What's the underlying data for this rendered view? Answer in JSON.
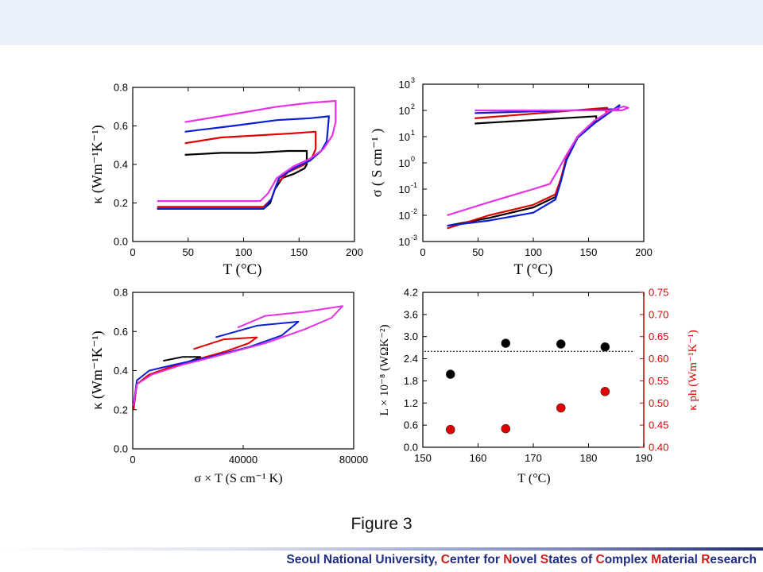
{
  "caption": "Figure 3",
  "footer": {
    "parts": [
      {
        "text": "Seoul National University, ",
        "red": false
      },
      {
        "text": "C",
        "red": true
      },
      {
        "text": "enter for ",
        "red": false
      },
      {
        "text": "N",
        "red": true
      },
      {
        "text": "ovel ",
        "red": false
      },
      {
        "text": "S",
        "red": true
      },
      {
        "text": "tates of ",
        "red": false
      },
      {
        "text": "C",
        "red": true
      },
      {
        "text": "omplex ",
        "red": false
      },
      {
        "text": "M",
        "red": true
      },
      {
        "text": "aterial ",
        "red": false
      },
      {
        "text": "R",
        "red": true
      },
      {
        "text": "esearch",
        "red": false
      }
    ]
  },
  "colors": {
    "black": "#000000",
    "red": "#e00000",
    "blue": "#0a1fd6",
    "magenta": "#e632e6",
    "axis": "#000000",
    "right_axis": "#e00000"
  },
  "chart_data": [
    {
      "type": "line",
      "xlabel": "T (°C)",
      "ylabel": "κ (Wm⁻¹K⁻¹)",
      "xlim": [
        0,
        200
      ],
      "ylim": [
        0,
        0.8
      ],
      "xticks": [
        "0",
        "50",
        "100",
        "150",
        "200"
      ],
      "yticks": [
        "0.0",
        "0.2",
        "0.4",
        "0.6",
        "0.8"
      ],
      "series": [
        {
          "color": "black",
          "x": [
            22,
            60,
            100,
            118,
            124,
            128,
            135,
            145,
            155,
            157,
            157,
            140,
            110,
            80,
            47
          ],
          "y": [
            0.17,
            0.17,
            0.17,
            0.17,
            0.2,
            0.27,
            0.33,
            0.35,
            0.38,
            0.4,
            0.47,
            0.47,
            0.46,
            0.46,
            0.45
          ]
        },
        {
          "color": "red",
          "x": [
            22,
            60,
            100,
            118,
            125,
            130,
            140,
            155,
            162,
            165,
            165,
            140,
            110,
            80,
            47
          ],
          "y": [
            0.18,
            0.18,
            0.18,
            0.18,
            0.22,
            0.3,
            0.36,
            0.4,
            0.44,
            0.48,
            0.57,
            0.56,
            0.55,
            0.54,
            0.51
          ]
        },
        {
          "color": "blue",
          "x": [
            22,
            60,
            100,
            118,
            125,
            132,
            145,
            160,
            170,
            175,
            177,
            160,
            130,
            90,
            47
          ],
          "y": [
            0.17,
            0.17,
            0.17,
            0.17,
            0.22,
            0.33,
            0.38,
            0.42,
            0.47,
            0.52,
            0.65,
            0.64,
            0.63,
            0.6,
            0.57
          ]
        },
        {
          "color": "magenta",
          "x": [
            22,
            60,
            100,
            115,
            122,
            130,
            145,
            160,
            172,
            180,
            183,
            183,
            160,
            130,
            100,
            47
          ],
          "y": [
            0.21,
            0.21,
            0.21,
            0.21,
            0.25,
            0.33,
            0.39,
            0.43,
            0.48,
            0.55,
            0.62,
            0.73,
            0.72,
            0.7,
            0.67,
            0.62
          ]
        }
      ]
    },
    {
      "type": "line",
      "xlabel": "T (°C)",
      "ylabel": "σ ( S cm⁻¹ )",
      "xlim": [
        0,
        200
      ],
      "ylim": [
        -3,
        3
      ],
      "yscale": "log",
      "xticks": [
        "0",
        "50",
        "100",
        "150",
        "200"
      ],
      "yticks_exponents": [
        "-3",
        "-2",
        "-1",
        "0",
        "1",
        "2",
        "3"
      ],
      "series": [
        {
          "color": "black",
          "x": [
            22,
            60,
            100,
            120,
            125,
            130,
            140,
            150,
            157,
            157,
            47
          ],
          "y": [
            -2.4,
            -2.1,
            -1.7,
            -1.3,
            -0.6,
            0.2,
            1.0,
            1.4,
            1.6,
            1.78,
            1.5
          ]
        },
        {
          "color": "red",
          "x": [
            22,
            60,
            100,
            120,
            125,
            130,
            140,
            155,
            165,
            167,
            47
          ],
          "y": [
            -2.5,
            -2.0,
            -1.6,
            -1.2,
            -0.6,
            0.2,
            1.0,
            1.5,
            1.8,
            2.1,
            1.7
          ]
        },
        {
          "color": "blue",
          "x": [
            22,
            60,
            100,
            120,
            125,
            130,
            140,
            155,
            170,
            178,
            177,
            47
          ],
          "y": [
            -2.4,
            -2.2,
            -1.9,
            -1.4,
            -0.7,
            0.1,
            0.95,
            1.5,
            1.95,
            2.2,
            2.05,
            1.9
          ]
        },
        {
          "color": "magenta",
          "x": [
            22,
            60,
            100,
            115,
            122,
            130,
            140,
            155,
            170,
            182,
            186,
            180,
            47
          ],
          "y": [
            -2.0,
            -1.5,
            -1.0,
            -0.8,
            -0.3,
            0.3,
            1.0,
            1.6,
            2.0,
            2.15,
            2.1,
            2.0,
            2.0
          ]
        }
      ]
    },
    {
      "type": "line",
      "xlabel": "σ × T (S cm⁻¹ K)",
      "ylabel": "κ (Wm⁻¹K⁻¹)",
      "xlim": [
        0,
        80000
      ],
      "ylim": [
        0,
        0.8
      ],
      "xticks": [
        "0",
        "40000",
        "80000"
      ],
      "yticks": [
        "0.0",
        "0.2",
        "0.4",
        "0.6",
        "0.8"
      ],
      "series": [
        {
          "color": "black",
          "x": [
            300,
            1500,
            5000,
            12000,
            19000,
            23000,
            24500,
            18000,
            11000
          ],
          "y": [
            0.2,
            0.33,
            0.37,
            0.41,
            0.44,
            0.46,
            0.47,
            0.47,
            0.45
          ]
        },
        {
          "color": "red",
          "x": [
            300,
            1500,
            6000,
            14000,
            24000,
            34000,
            42000,
            45000,
            33000,
            22000
          ],
          "y": [
            0.2,
            0.33,
            0.38,
            0.42,
            0.46,
            0.5,
            0.54,
            0.57,
            0.56,
            0.51
          ]
        },
        {
          "color": "blue",
          "x": [
            300,
            1500,
            6000,
            15000,
            28000,
            42000,
            54000,
            60000,
            45000,
            30000
          ],
          "y": [
            0.22,
            0.35,
            0.4,
            0.43,
            0.47,
            0.52,
            0.58,
            0.65,
            0.63,
            0.57
          ]
        },
        {
          "color": "magenta",
          "x": [
            300,
            1500,
            7000,
            18000,
            32000,
            48000,
            62000,
            72000,
            76000,
            62000,
            48000,
            38000
          ],
          "y": [
            0.22,
            0.33,
            0.38,
            0.43,
            0.48,
            0.54,
            0.61,
            0.67,
            0.73,
            0.7,
            0.68,
            0.62
          ]
        }
      ]
    },
    {
      "type": "scatter",
      "xlabel": "T (°C)",
      "ylabel_left": "L × 10⁻⁸ (WΩK⁻²)",
      "ylabel_right": "κ ph (Wm⁻¹K⁻¹)",
      "xlim": [
        150,
        190
      ],
      "ylim_left": [
        0,
        4.2
      ],
      "ylim_right": [
        0.4,
        0.75
      ],
      "xticks": [
        "150",
        "160",
        "170",
        "180",
        "190"
      ],
      "yticks_left": [
        "0.0",
        "0.6",
        "1.2",
        "1.8",
        "2.4",
        "3.0",
        "3.6",
        "4.2"
      ],
      "yticks_right": [
        "0.40",
        "0.45",
        "0.50",
        "0.55",
        "0.60",
        "0.65",
        "0.70",
        "0.75"
      ],
      "reference_line_left": 2.6,
      "series": [
        {
          "axis": "left",
          "color": "black",
          "x": [
            155,
            165,
            175,
            183
          ],
          "y": [
            1.98,
            2.82,
            2.8,
            2.72
          ]
        },
        {
          "axis": "right",
          "color": "red",
          "x": [
            155,
            165,
            175,
            183
          ],
          "y": [
            0.44,
            0.442,
            0.489,
            0.526
          ]
        }
      ]
    }
  ]
}
